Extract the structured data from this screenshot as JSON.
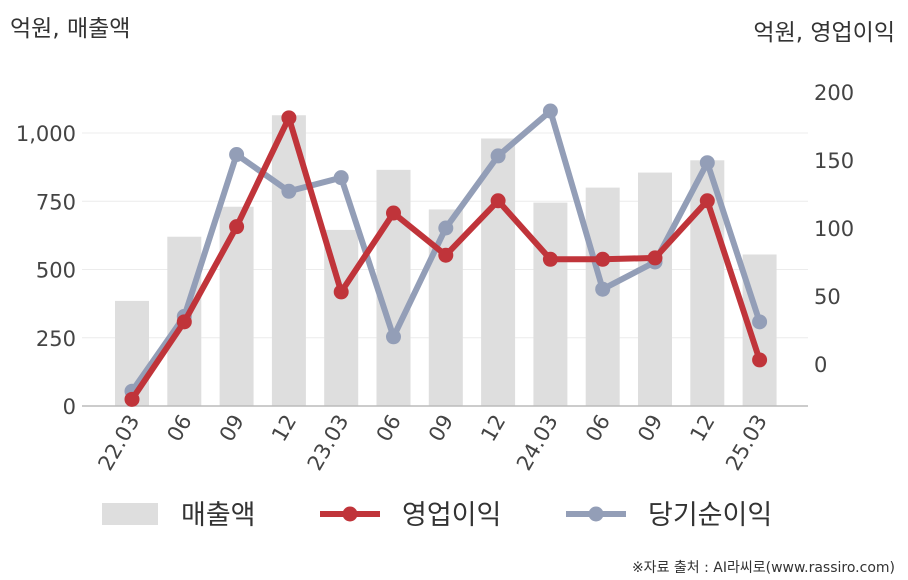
{
  "chart_data": {
    "type": "bar+line",
    "left_axis_unit": "억원, 매출액",
    "right_axis_unit": "억원, 영업이익",
    "categories": [
      "22.03",
      "06",
      "09",
      "12",
      "23.03",
      "06",
      "09",
      "12",
      "24.03",
      "06",
      "09",
      "12",
      "25.03"
    ],
    "left_axis": {
      "ylim": [
        0,
        1150
      ],
      "ticks": [
        0,
        250,
        500,
        750,
        1000
      ],
      "tick_labels": [
        "0",
        "250",
        "500",
        "750",
        "1,000"
      ]
    },
    "right_axis": {
      "ylim": [
        -31,
        200
      ],
      "ticks": [
        0,
        50,
        100,
        150,
        200
      ],
      "tick_labels": [
        "0",
        "50",
        "100",
        "150",
        "200"
      ]
    },
    "series": [
      {
        "name": "매출액",
        "type": "bar",
        "axis": "left",
        "color": "#dedede",
        "values": [
          385,
          620,
          730,
          1065,
          645,
          865,
          720,
          980,
          745,
          800,
          855,
          900,
          555
        ]
      },
      {
        "name": "영업이익",
        "type": "line",
        "axis": "right",
        "color": "#c0343a",
        "values": [
          -26,
          31,
          101,
          181,
          53,
          111,
          80,
          120,
          77,
          77,
          78,
          120,
          3
        ]
      },
      {
        "name": "당기순이익",
        "type": "line",
        "axis": "right",
        "color": "#939eb7",
        "values": [
          -20,
          35,
          154,
          127,
          137,
          20,
          100,
          153,
          186,
          55,
          75,
          148,
          31
        ]
      }
    ],
    "grid": true,
    "legend": "bottom"
  },
  "source_note": "※자료 출처 : AI라씨로(www.rassiro.com)"
}
